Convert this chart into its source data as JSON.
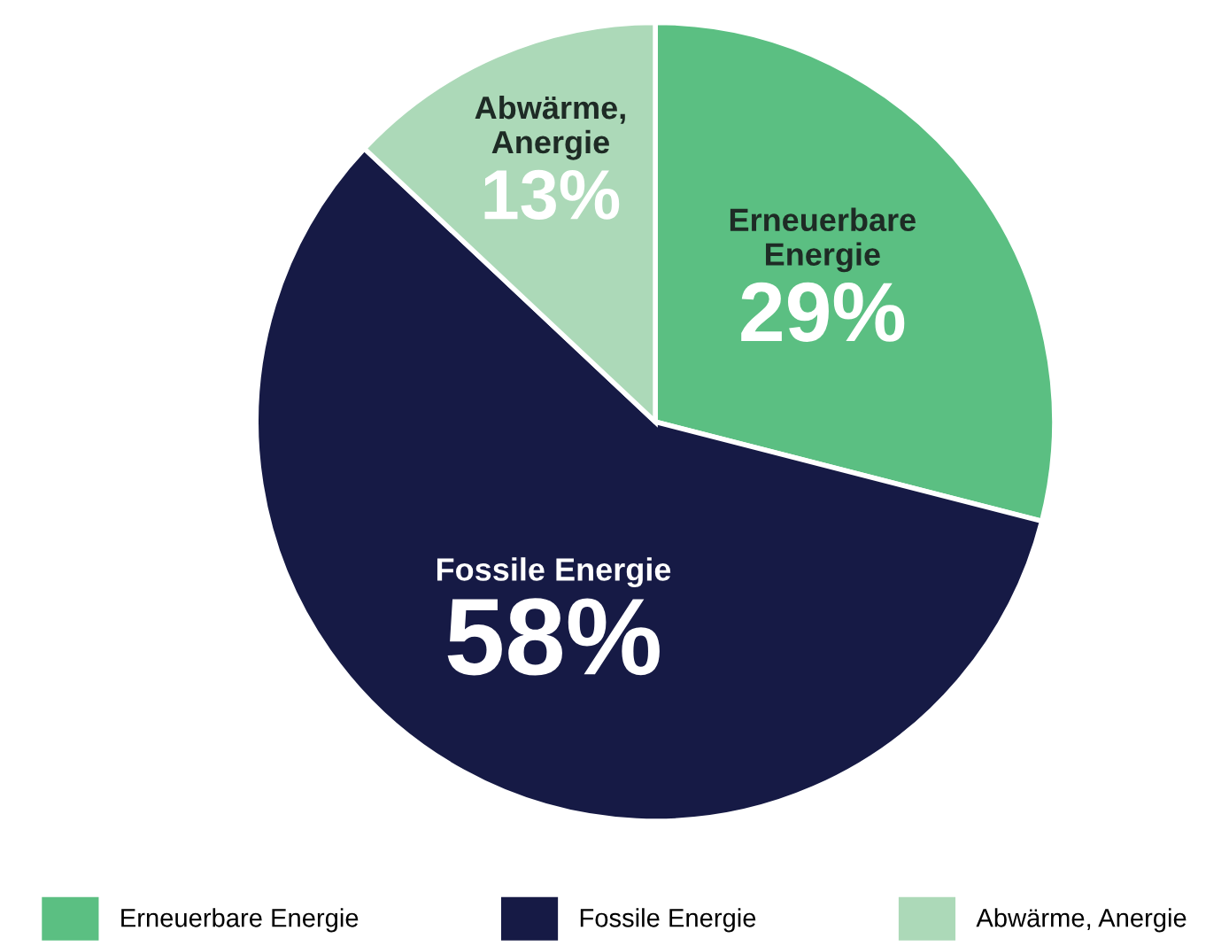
{
  "chart_data": {
    "type": "pie",
    "categories": [
      "Erneuerbare Energie",
      "Fossile Energie",
      "Abwärme, Anergie"
    ],
    "values": [
      29,
      58,
      13
    ],
    "value_labels": [
      "29%",
      "58%",
      "13%"
    ],
    "colors": [
      "#5bbf82",
      "#161a45",
      "#acd9b8"
    ],
    "legend": "bottom"
  }
}
